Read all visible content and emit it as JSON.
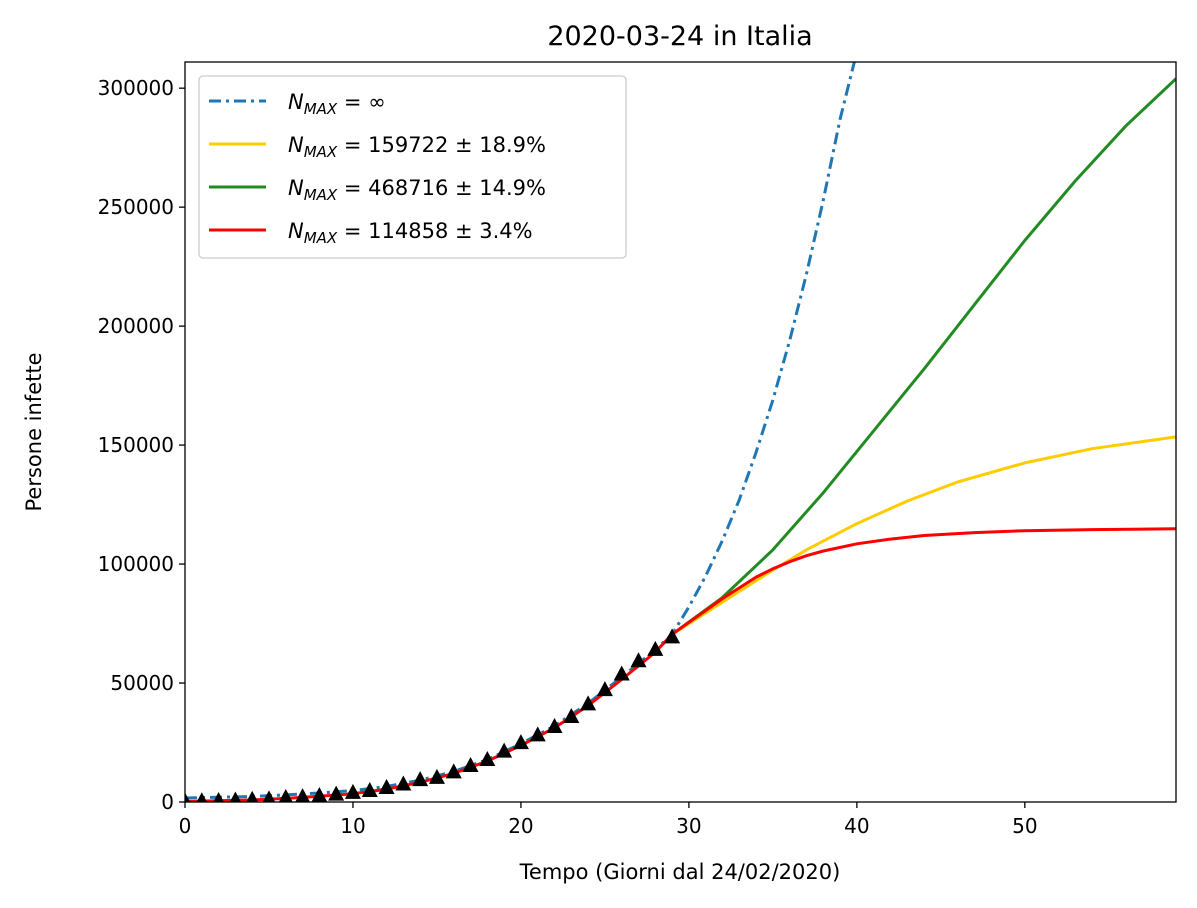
{
  "chart_data": {
    "type": "line",
    "title": "2020-03-24 in Italia",
    "xlabel": "Tempo (Giorni dal 24/02/2020)",
    "ylabel": "Persone infette",
    "xlim": [
      0,
      59
    ],
    "ylim": [
      0,
      311000
    ],
    "x_ticks": [
      0,
      10,
      20,
      30,
      40,
      50
    ],
    "y_ticks": [
      0,
      50000,
      100000,
      150000,
      200000,
      250000,
      300000
    ],
    "grid": false,
    "legend_position": "top-left",
    "series": [
      {
        "name": "N_MAX = ∞",
        "name_main": "N",
        "name_sub": "MAX",
        "name_rest": " = ∞",
        "color": "#1f77b4",
        "style": "dashdot",
        "x": [
          0,
          2,
          4,
          6,
          8,
          10,
          12,
          14,
          16,
          18,
          20,
          22,
          24,
          26,
          28,
          29,
          30,
          31,
          32,
          33,
          34,
          35,
          36,
          37,
          38,
          39,
          39.85
        ],
        "y": [
          1700,
          2000,
          2300,
          3000,
          3800,
          4800,
          6500,
          9200,
          12800,
          17800,
          24500,
          32000,
          41500,
          52500,
          64000,
          70500,
          82000,
          95000,
          110000,
          127000,
          147000,
          169000,
          194000,
          222000,
          253000,
          287000,
          311000
        ]
      },
      {
        "name": "N_MAX = 159722 ± 18.9%",
        "name_main": "N",
        "name_sub": "MAX",
        "name_rest": " = 159722 ± 18.9%",
        "color": "#ffcc00",
        "style": "solid",
        "x": [
          29,
          31,
          33,
          35,
          37,
          40,
          43,
          46,
          50,
          54,
          59
        ],
        "y": [
          70500,
          79500,
          88500,
          97500,
          106000,
          117000,
          126500,
          134500,
          142500,
          148500,
          153500
        ]
      },
      {
        "name": "N_MAX = 468716 ± 14.9%",
        "name_main": "N",
        "name_sub": "MAX",
        "name_rest": " = 468716 ± 14.9%",
        "color": "#228b22",
        "style": "solid",
        "x": [
          29,
          32,
          35,
          38,
          41,
          44,
          47,
          50,
          53,
          56,
          59
        ],
        "y": [
          70500,
          86000,
          106000,
          130000,
          156000,
          182000,
          209000,
          236000,
          261000,
          284000,
          304000
        ]
      },
      {
        "name": "N_MAX = 114858 ± 3.4%",
        "name_main": "N",
        "name_sub": "MAX",
        "name_rest": " = 114858 ± 3.4%",
        "color": "#ff0000",
        "style": "solid",
        "x": [
          0,
          2,
          4,
          6,
          8,
          10,
          12,
          14,
          16,
          18,
          20,
          22,
          24,
          26,
          28,
          29,
          30,
          31,
          32,
          33,
          34,
          35,
          36,
          37,
          38,
          40,
          42,
          44,
          47,
          50,
          54,
          59
        ],
        "y": [
          200,
          500,
          900,
          1500,
          2400,
          3500,
          5400,
          8300,
          12000,
          17200,
          23800,
          31200,
          40500,
          51500,
          63000,
          70500,
          75500,
          80500,
          85500,
          90000,
          94500,
          98000,
          101000,
          103500,
          105500,
          108500,
          110500,
          112000,
          113200,
          114000,
          114500,
          114800
        ]
      }
    ],
    "observed": {
      "marker": "triangle",
      "color": "#000000",
      "x": [
        0,
        1,
        2,
        3,
        4,
        5,
        6,
        7,
        8,
        9,
        10,
        11,
        12,
        13,
        14,
        15,
        16,
        17,
        18,
        19,
        20,
        21,
        22,
        23,
        24,
        25,
        26,
        27,
        28,
        29
      ],
      "y": [
        229,
        322,
        400,
        650,
        888,
        1128,
        1694,
        2036,
        2502,
        3089,
        3858,
        4636,
        5883,
        7375,
        9172,
        10149,
        12462,
        15113,
        17660,
        21157,
        24747,
        27980,
        31506,
        35713,
        41035,
        47021,
        53578,
        59138,
        63927,
        69176
      ]
    }
  }
}
